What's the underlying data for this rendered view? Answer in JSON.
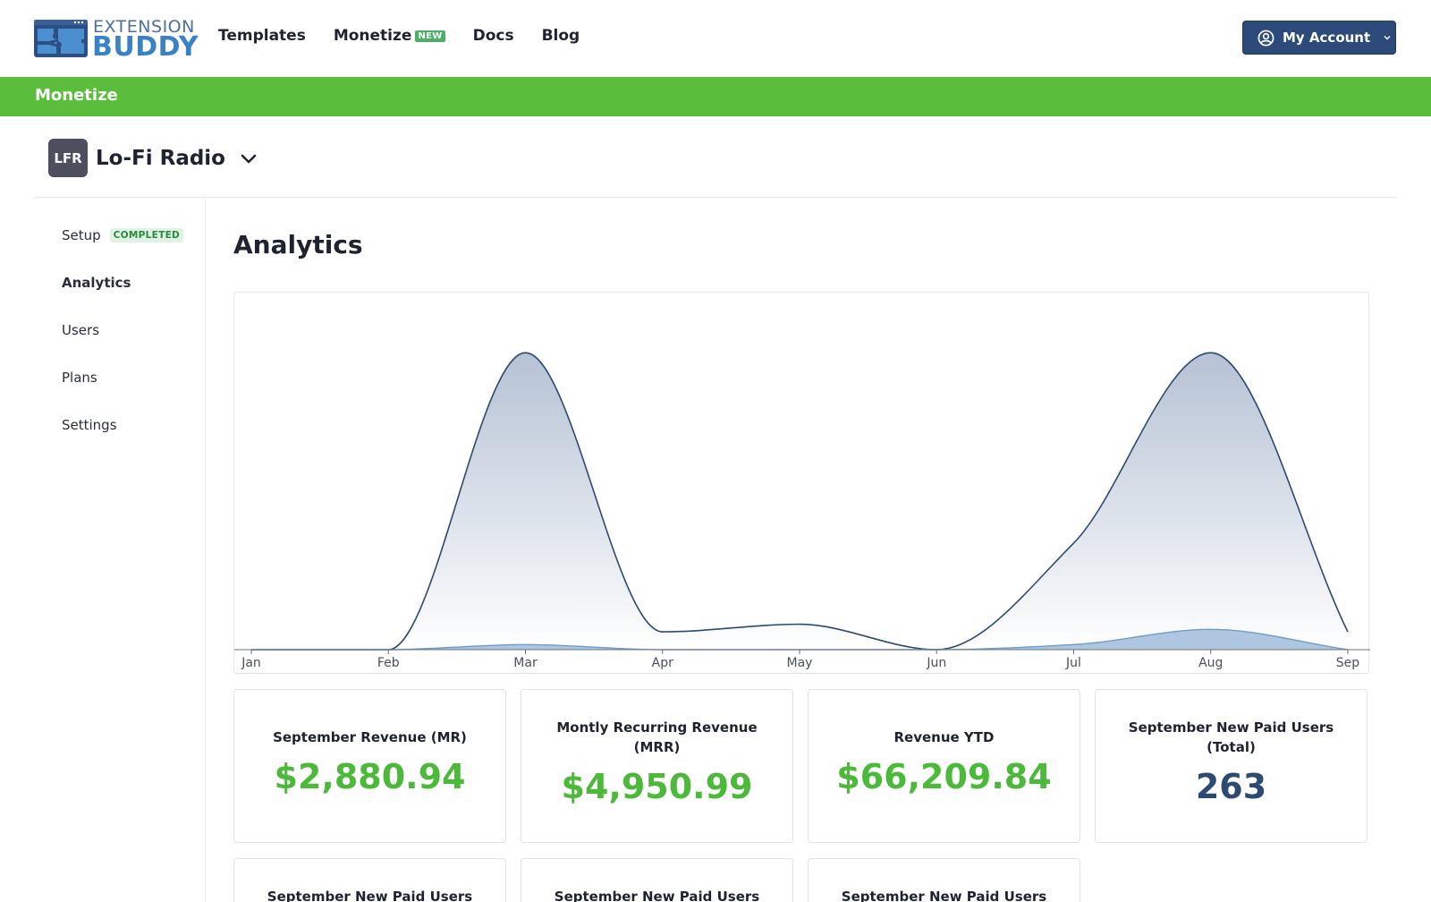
{
  "header": {
    "logo_top": "EXTENSION",
    "logo_bottom": "BUDDY",
    "nav": [
      {
        "label": "Templates"
      },
      {
        "label": "Monetize",
        "badge": "NEW"
      },
      {
        "label": "Docs"
      },
      {
        "label": "Blog"
      }
    ],
    "account_label": "My Account"
  },
  "section_bar": {
    "title": "Monetize"
  },
  "project": {
    "initials": "LFR",
    "name": "Lo-Fi Radio"
  },
  "sidebar": {
    "items": [
      {
        "label": "Setup",
        "badge": "COMPLETED"
      },
      {
        "label": "Analytics"
      },
      {
        "label": "Users"
      },
      {
        "label": "Plans"
      },
      {
        "label": "Settings"
      }
    ]
  },
  "main": {
    "title": "Analytics",
    "metrics": [
      {
        "label": "September Revenue (MR)",
        "value": "$2,880.94"
      },
      {
        "label": "Montly Recurring Revenue (MRR)",
        "value": "$4,950.99"
      },
      {
        "label": "Revenue YTD",
        "value": "$66,209.84"
      },
      {
        "label": "September New Paid Users (Total)",
        "value": "263"
      },
      {
        "label": "September New Paid Users"
      },
      {
        "label": "September New Paid Users"
      },
      {
        "label": "September New Paid Users"
      }
    ]
  },
  "colors": {
    "accent_green": "#5bbd3c",
    "metric_green": "#4cb93a",
    "navy": "#2c4a7a",
    "series_primary": "#2c4a74",
    "series_secondary": "#6f9cc9"
  },
  "chart_data": {
    "type": "area",
    "categories": [
      "Jan",
      "Feb",
      "Mar",
      "Apr",
      "May",
      "Jun",
      "Jul",
      "Aug",
      "Sep"
    ],
    "series": [
      {
        "values": [
          0,
          0,
          11700,
          700,
          1000,
          0,
          4200,
          11700,
          700
        ]
      },
      {
        "values": [
          0,
          0,
          200,
          0,
          0,
          0,
          200,
          800,
          0
        ]
      }
    ],
    "ylim": [
      0,
      12800
    ],
    "grid": false
  }
}
